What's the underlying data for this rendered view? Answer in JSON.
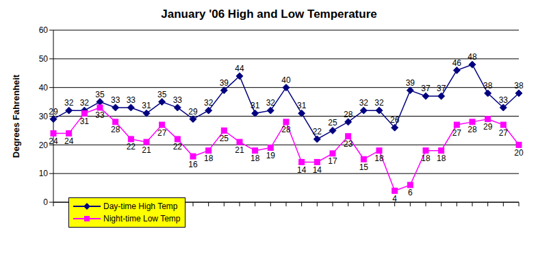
{
  "chart_data": {
    "type": "line",
    "title": "January '06 High and Low Temperature",
    "y_label": "Degrees Fahrenheit",
    "categories": [
      null,
      null,
      null,
      null,
      null,
      null,
      null,
      null,
      null,
      null,
      null,
      null,
      null,
      null,
      null,
      null,
      null,
      null,
      null,
      null,
      null,
      null,
      null,
      null,
      null,
      null,
      null,
      null,
      null,
      null,
      null
    ],
    "series": [
      {
        "name": "Day-time High Temp",
        "color": "#000080",
        "marker": "diamond",
        "values": [
          29,
          32,
          32,
          35,
          33,
          33,
          31,
          35,
          33,
          29,
          32,
          39,
          44,
          31,
          32,
          40,
          31,
          22,
          25,
          28,
          32,
          32,
          26,
          39,
          37,
          37,
          46,
          48,
          38,
          33,
          38
        ]
      },
      {
        "name": "Night-time Low Temp",
        "color": "#ff00ff",
        "marker": "square",
        "values": [
          24,
          24,
          31,
          33,
          28,
          22,
          21,
          27,
          22,
          16,
          18,
          25,
          21,
          18,
          19,
          28,
          14,
          14,
          17,
          23,
          15,
          18,
          4,
          6,
          18,
          18,
          27,
          28,
          29,
          27,
          20
        ]
      }
    ],
    "ylim": [
      0,
      60
    ],
    "yticks": [
      0,
      10,
      20,
      30,
      40,
      50,
      60
    ],
    "grid": true,
    "legend": "lower left",
    "data_labels": true
  }
}
